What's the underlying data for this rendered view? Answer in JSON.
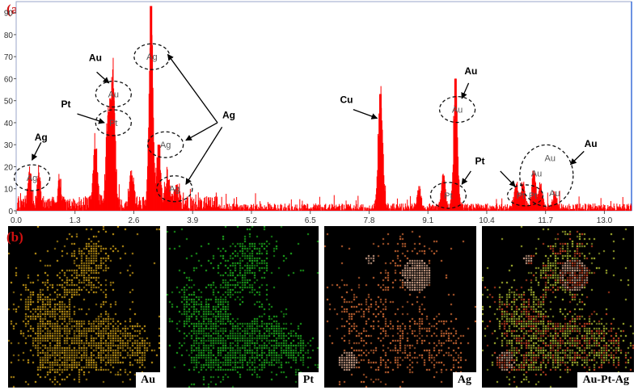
{
  "panel_labels": {
    "a": "(a)",
    "b": "(b)"
  },
  "chart_data": {
    "type": "bar",
    "title": "",
    "xlabel": "",
    "ylabel": "",
    "xlim": [
      0,
      13.6
    ],
    "ylim": [
      0,
      95
    ],
    "x_ticks": [
      "0.0",
      "1.3",
      "2.6",
      "3.9",
      "5.2",
      "6.5",
      "7.8",
      "9.1",
      "10.4",
      "11.7",
      "13.0"
    ],
    "y_ticks": [
      "0",
      "10",
      "20",
      "30",
      "40",
      "50",
      "60",
      "70",
      "80",
      "90"
    ],
    "bar_color": "#ff0000",
    "peaks": [
      {
        "x": 0.3,
        "height": 17,
        "width": 0.05
      },
      {
        "x": 0.5,
        "height": 14,
        "width": 0.05
      },
      {
        "x": 0.95,
        "height": 11,
        "width": 0.05
      },
      {
        "x": 1.75,
        "height": 28,
        "width": 0.06
      },
      {
        "x": 2.05,
        "height": 45,
        "width": 0.08
      },
      {
        "x": 2.15,
        "height": 50,
        "width": 0.06
      },
      {
        "x": 2.55,
        "height": 16,
        "width": 0.06
      },
      {
        "x": 2.98,
        "height": 93,
        "width": 0.06
      },
      {
        "x": 3.15,
        "height": 30,
        "width": 0.06
      },
      {
        "x": 3.35,
        "height": 14,
        "width": 0.06
      },
      {
        "x": 3.55,
        "height": 9,
        "width": 0.06
      },
      {
        "x": 8.05,
        "height": 53,
        "width": 0.07
      },
      {
        "x": 8.9,
        "height": 9,
        "width": 0.06
      },
      {
        "x": 9.44,
        "height": 16,
        "width": 0.06
      },
      {
        "x": 9.71,
        "height": 60,
        "width": 0.06
      },
      {
        "x": 11.05,
        "height": 11,
        "width": 0.06
      },
      {
        "x": 11.2,
        "height": 12,
        "width": 0.06
      },
      {
        "x": 11.44,
        "height": 17,
        "width": 0.06
      },
      {
        "x": 11.59,
        "height": 10,
        "width": 0.06
      },
      {
        "x": 11.9,
        "height": 7,
        "width": 0.06
      }
    ],
    "noise_level": 6,
    "peak_markers": [
      {
        "text": "Ag",
        "x": 0.35,
        "y": 15,
        "ellipse": true
      },
      {
        "text": "Au",
        "x": 2.15,
        "y": 53,
        "ellipse": true
      },
      {
        "text": "Pt",
        "x": 2.15,
        "y": 40,
        "ellipse": true
      },
      {
        "text": "Ag",
        "x": 3.0,
        "y": 70,
        "ellipse": true
      },
      {
        "text": "Ag",
        "x": 3.3,
        "y": 30,
        "ellipse": true
      },
      {
        "text": "Ag",
        "x": 3.5,
        "y": 10,
        "ellipse": true
      },
      {
        "text": "Au",
        "x": 9.75,
        "y": 46,
        "ellipse": true
      },
      {
        "text": "Pt",
        "x": 9.55,
        "y": 7,
        "ellipse": true
      },
      {
        "text": "Pt",
        "x": 11.15,
        "y": 7,
        "ellipse": false
      },
      {
        "text": "Pt",
        "x": 11.42,
        "y": 7,
        "ellipse": false
      },
      {
        "text": "Au",
        "x": 11.5,
        "y": 17,
        "ellipse": false
      },
      {
        "text": "Au",
        "x": 11.8,
        "y": 24,
        "ellipse": false
      },
      {
        "text": "Au",
        "x": 11.9,
        "y": 8,
        "ellipse": false
      }
    ],
    "annotations": [
      {
        "text": "Ag",
        "x": 0.55,
        "y": 32
      },
      {
        "text": "Au",
        "x": 1.75,
        "y": 68
      },
      {
        "text": "Pt",
        "x": 1.1,
        "y": 47
      },
      {
        "text": "Ag",
        "x": 4.7,
        "y": 42
      },
      {
        "text": "Cu",
        "x": 7.3,
        "y": 49
      },
      {
        "text": "Au",
        "x": 10.05,
        "y": 62
      },
      {
        "text": "Pt",
        "x": 10.25,
        "y": 21
      },
      {
        "text": "Au",
        "x": 12.7,
        "y": 29
      }
    ]
  },
  "maps": [
    {
      "label": "Au",
      "color": "#e6b21a"
    },
    {
      "label": "Pt",
      "color": "#22c422"
    },
    {
      "label": "Ag",
      "color": "#f07a3c"
    },
    {
      "label": "Au-Pt-Ag",
      "color": "#c8d83a"
    }
  ]
}
